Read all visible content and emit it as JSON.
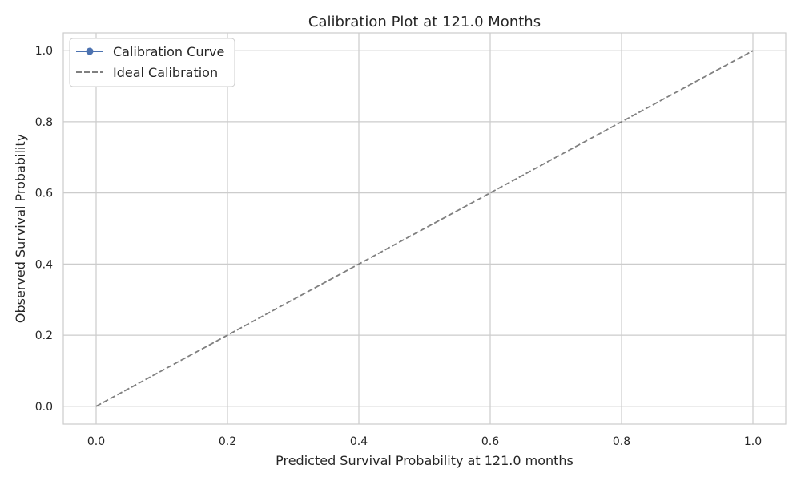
{
  "chart_data": {
    "type": "line",
    "title": "Calibration Plot at 121.0 Months",
    "xlabel": "Predicted Survival Probability at 121.0 months",
    "ylabel": "Observed Survival Probability",
    "xlim": [
      -0.05,
      1.05
    ],
    "ylim": [
      -0.05,
      1.05
    ],
    "xticks": [
      0.0,
      0.2,
      0.4,
      0.6,
      0.8,
      1.0
    ],
    "yticks": [
      0.0,
      0.2,
      0.4,
      0.6,
      0.8,
      1.0
    ],
    "xtick_labels": [
      "0.0",
      "0.2",
      "0.4",
      "0.6",
      "0.8",
      "1.0"
    ],
    "ytick_labels": [
      "0.0",
      "0.2",
      "0.4",
      "0.6",
      "0.8",
      "1.0"
    ],
    "grid": true,
    "legend_position": "top-left",
    "series": [
      {
        "name": "Calibration Curve",
        "style": "solid-with-markers",
        "color": "#4c72b0",
        "x": [],
        "y": []
      },
      {
        "name": "Ideal Calibration",
        "style": "dashed",
        "color": "#808080",
        "x": [
          0.0,
          1.0
        ],
        "y": [
          0.0,
          1.0
        ]
      }
    ]
  }
}
